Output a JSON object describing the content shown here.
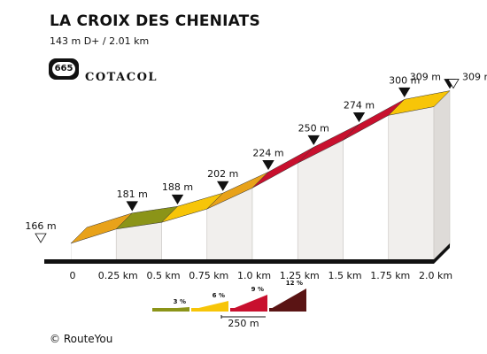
{
  "header": {
    "title": "LA CROIX DES CHENIATS",
    "subtitle": "143 m D+ / 2.01 km",
    "badge_number": "665",
    "brand": "COTACOL"
  },
  "chart_data": {
    "type": "area",
    "x_labels": [
      "0",
      "0.25 km",
      "0.5 km",
      "0.75 km",
      "1.0 km",
      "1.25 km",
      "1.5 km",
      "1.75 km",
      "2.0 km"
    ],
    "segments": [
      {
        "from_km": 0.0,
        "to_km": 0.25,
        "from_m": 166,
        "to_m": 181,
        "color": "#e8a21a"
      },
      {
        "from_km": 0.25,
        "to_km": 0.5,
        "from_m": 181,
        "to_m": 188,
        "color": "#8b9418"
      },
      {
        "from_km": 0.5,
        "to_km": 0.75,
        "from_m": 188,
        "to_m": 202,
        "color": "#f7c508"
      },
      {
        "from_km": 0.75,
        "to_km": 1.0,
        "from_m": 202,
        "to_m": 224,
        "color": "#e8a21a"
      },
      {
        "from_km": 1.0,
        "to_km": 1.25,
        "from_m": 224,
        "to_m": 250,
        "color": "#c8102e"
      },
      {
        "from_km": 1.25,
        "to_km": 1.5,
        "from_m": 250,
        "to_m": 274,
        "color": "#c8102e"
      },
      {
        "from_km": 1.5,
        "to_km": 1.75,
        "from_m": 274,
        "to_m": 300,
        "color": "#c8102e"
      },
      {
        "from_km": 1.75,
        "to_km": 2.0,
        "from_m": 300,
        "to_m": 309,
        "color": "#f7c508"
      }
    ],
    "elevation_labels": [
      {
        "km": 0.0,
        "text": "166 m",
        "start": true
      },
      {
        "km": 0.25,
        "text": "181 m"
      },
      {
        "km": 0.5,
        "text": "188 m"
      },
      {
        "km": 0.75,
        "text": "202 m"
      },
      {
        "km": 1.0,
        "text": "224 m"
      },
      {
        "km": 1.25,
        "text": "250 m"
      },
      {
        "km": 1.5,
        "text": "274 m"
      },
      {
        "km": 1.75,
        "text": "300 m"
      },
      {
        "km": 2.0,
        "text": "309 m"
      },
      {
        "km": 2.0,
        "text": "309 m",
        "end": true
      }
    ]
  },
  "legend": {
    "items": [
      {
        "label": "3 %",
        "color": "#8b9418"
      },
      {
        "label": "6 %",
        "color": "#f7c508"
      },
      {
        "label": "9 %",
        "color": "#c8102e"
      },
      {
        "label": "12 %",
        "color": "#5a1414"
      }
    ],
    "scale_label": "250 m"
  },
  "footer": {
    "copyright_symbol": "©",
    "text": "RouteYou"
  }
}
